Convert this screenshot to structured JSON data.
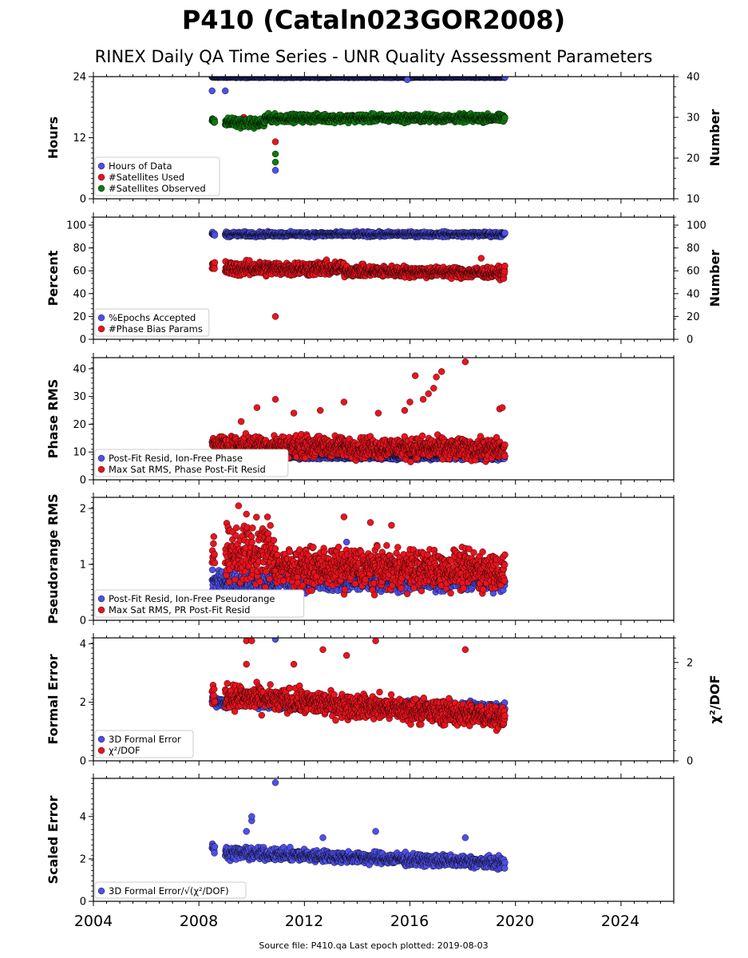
{
  "figure": {
    "title": "P410 (Cataln023GOR2008)",
    "subtitle": "RINEX Daily QA Time Series - UNR Quality Assessment Parameters",
    "footer": "Source file: P410.qa Last epoch plotted: 2019-08-03",
    "x_axis": {
      "range": [
        2004.0,
        2026.0
      ],
      "ticks": [
        "2004",
        "2008",
        "2012",
        "2016",
        "2020",
        "2024"
      ]
    }
  },
  "chart_data": [
    {
      "type": "scatter",
      "ylabel": "Hours",
      "ylabel_right": "Number",
      "ylim": [
        0,
        24
      ],
      "ylim_right": [
        10,
        40
      ],
      "yticks": [
        "0",
        "12",
        "24"
      ],
      "yticks_right": [
        "10",
        "20",
        "30",
        "40"
      ],
      "legend_position": "lower-left",
      "series": [
        {
          "name": "Hours of Data",
          "color": "#4f4fe8",
          "axis": "left",
          "segments": [
            {
              "x": [
                2008.5,
                2019.6
              ],
              "y": [
                23.9,
                23.9
              ],
              "spread": 0.15
            }
          ],
          "outliers": [
            [
              2008.5,
              21.2
            ],
            [
              2009.0,
              21.2
            ],
            [
              2010.9,
              5.6
            ],
            [
              2015.9,
              23.4
            ]
          ]
        },
        {
          "name": "#Satellites Used",
          "color": "#e8141e",
          "axis": "right",
          "segments": [],
          "outliers": [
            [
              2009.7,
              30.0
            ],
            [
              2010.9,
              24.0
            ]
          ]
        },
        {
          "name": "#Satellites Observed",
          "color": "#0f7a0f",
          "axis": "right",
          "segments": [
            {
              "x": [
                2008.5,
                2008.6
              ],
              "y": [
                29.5,
                29.5
              ],
              "spread": 1.5
            },
            {
              "x": [
                2009.0,
                2010.5
              ],
              "y": [
                28.8,
                28.5
              ],
              "spread": 1.6
            },
            {
              "x": [
                2010.5,
                2019.6
              ],
              "y": [
                29.8,
                29.8
              ],
              "spread": 1.4
            }
          ],
          "outliers": [
            [
              2010.9,
              19.0
            ],
            [
              2010.9,
              21.0
            ]
          ]
        }
      ]
    },
    {
      "type": "scatter",
      "ylabel": "Percent",
      "ylabel_right": "Number",
      "ylim": [
        0,
        107
      ],
      "ylim_right": [
        0,
        107
      ],
      "yticks": [
        "0",
        "20",
        "40",
        "60",
        "80",
        "100"
      ],
      "yticks_right": [
        "0",
        "20",
        "40",
        "60",
        "80",
        "100"
      ],
      "legend_position": "lower-left",
      "series": [
        {
          "name": "%Epochs Accepted",
          "color": "#4f4fe8",
          "axis": "left",
          "segments": [
            {
              "x": [
                2008.5,
                2008.6
              ],
              "y": [
                92,
                92
              ],
              "spread": 3
            },
            {
              "x": [
                2009.0,
                2019.6
              ],
              "y": [
                92,
                92
              ],
              "spread": 3
            }
          ],
          "outliers": []
        },
        {
          "name": "#Phase Bias Params",
          "color": "#e8141e",
          "axis": "right",
          "segments": [
            {
              "x": [
                2008.5,
                2008.6
              ],
              "y": [
                64,
                64
              ],
              "spread": 6
            },
            {
              "x": [
                2009.0,
                2013.5
              ],
              "y": [
                62,
                62
              ],
              "spread": 9
            },
            {
              "x": [
                2013.5,
                2019.6
              ],
              "y": [
                60,
                58
              ],
              "spread": 7
            }
          ],
          "outliers": [
            [
              2010.9,
              20
            ],
            [
              2018.7,
              71
            ]
          ]
        }
      ]
    },
    {
      "type": "scatter",
      "ylabel": "Phase RMS",
      "ylim": [
        0,
        44
      ],
      "yticks": [
        "0",
        "10",
        "20",
        "30",
        "40"
      ],
      "legend_position": "lower-left",
      "series": [
        {
          "name": "Post-Fit Resid, Ion-Free Phase",
          "color": "#4f4fe8",
          "axis": "left",
          "segments": [
            {
              "x": [
                2008.5,
                2019.6
              ],
              "y": [
                8.5,
                8.0
              ],
              "spread": 1.2
            }
          ],
          "outliers": []
        },
        {
          "name": "Max Sat RMS, Phase Post-Fit Resid",
          "color": "#e8141e",
          "axis": "left",
          "segments": [
            {
              "x": [
                2008.5,
                2019.6
              ],
              "y": [
                12.5,
                11.0
              ],
              "spread": 5.5
            }
          ],
          "outliers": [
            [
              2009.6,
              21
            ],
            [
              2010.2,
              26
            ],
            [
              2010.9,
              29
            ],
            [
              2011.6,
              24
            ],
            [
              2012.6,
              25
            ],
            [
              2013.5,
              28
            ],
            [
              2014.8,
              24
            ],
            [
              2015.8,
              25
            ],
            [
              2016.0,
              28
            ],
            [
              2016.2,
              37.5
            ],
            [
              2016.5,
              29
            ],
            [
              2016.7,
              31
            ],
            [
              2016.9,
              33
            ],
            [
              2017.0,
              37
            ],
            [
              2017.2,
              39
            ],
            [
              2018.1,
              42.5
            ],
            [
              2019.4,
              25.5
            ],
            [
              2019.5,
              26
            ]
          ]
        }
      ]
    },
    {
      "type": "scatter",
      "ylabel": "Pseudorange RMS",
      "ylim": [
        0,
        2.2
      ],
      "yticks": [
        "0",
        "1",
        "2"
      ],
      "legend_position": "lower-left",
      "series": [
        {
          "name": "Post-Fit Resid, Ion-Free Pseudorange",
          "color": "#4f4fe8",
          "axis": "left",
          "segments": [
            {
              "x": [
                2008.5,
                2019.6
              ],
              "y": [
                0.7,
                0.7
              ],
              "spread": 0.25
            }
          ],
          "outliers": [
            [
              2013.6,
              1.4
            ],
            [
              2016.6,
              1.0
            ]
          ]
        },
        {
          "name": "Max Sat RMS, PR Post-Fit Resid",
          "color": "#e8141e",
          "axis": "left",
          "segments": [
            {
              "x": [
                2008.5,
                2008.6
              ],
              "y": [
                1.2,
                1.3
              ],
              "spread": 0.5
            },
            {
              "x": [
                2009.0,
                2010.9
              ],
              "y": [
                1.2,
                1.2
              ],
              "spread": 0.75
            },
            {
              "x": [
                2010.9,
                2019.6
              ],
              "y": [
                0.95,
                0.9
              ],
              "spread": 0.5
            }
          ],
          "outliers": [
            [
              2009.5,
              2.05
            ],
            [
              2009.8,
              1.9
            ],
            [
              2010.6,
              1.85
            ],
            [
              2013.5,
              1.85
            ],
            [
              2014.5,
              1.75
            ],
            [
              2015.3,
              1.7
            ]
          ]
        }
      ]
    },
    {
      "type": "scatter",
      "ylabel": "Formal Error",
      "ylabel_right": "χ²/DOF",
      "ylim": [
        0,
        4.2
      ],
      "ylim_right": [
        0,
        2.5
      ],
      "yticks": [
        "0",
        "2",
        "4"
      ],
      "yticks_right": [
        "0",
        "2"
      ],
      "legend_position": "lower-left",
      "series": [
        {
          "name": "3D Formal Error",
          "color": "#4f4fe8",
          "axis": "left",
          "segments": [
            {
              "x": [
                2008.5,
                2019.6
              ],
              "y": [
                2.0,
                1.8
              ],
              "spread": 0.25
            }
          ],
          "outliers": [
            [
              2010.9,
              4.15
            ]
          ]
        },
        {
          "name": "χ²/DOF",
          "color": "#e8141e",
          "axis": "left",
          "segments": [
            {
              "x": [
                2008.5,
                2008.6
              ],
              "y": [
                2.2,
                2.2
              ],
              "spread": 0.5
            },
            {
              "x": [
                2009.0,
                2019.6
              ],
              "y": [
                2.2,
                1.5
              ],
              "spread": 0.6
            }
          ],
          "outliers": [
            [
              2009.8,
              4.1
            ],
            [
              2010.0,
              4.1
            ],
            [
              2012.7,
              3.8
            ],
            [
              2013.6,
              3.6
            ],
            [
              2014.7,
              4.1
            ],
            [
              2018.1,
              3.8
            ],
            [
              2009.8,
              3.3
            ],
            [
              2011.6,
              3.3
            ]
          ]
        }
      ]
    },
    {
      "type": "scatter",
      "ylabel": "Scaled Error",
      "ylim": [
        0,
        5.8
      ],
      "yticks": [
        "0",
        "2",
        "4"
      ],
      "legend_position": "lower-left",
      "series": [
        {
          "name": "3D Formal Error/√(χ²/DOF)",
          "color": "#4f4fe8",
          "axis": "left",
          "segments": [
            {
              "x": [
                2008.5,
                2008.6
              ],
              "y": [
                2.5,
                2.5
              ],
              "spread": 0.3
            },
            {
              "x": [
                2009.0,
                2019.6
              ],
              "y": [
                2.3,
                1.8
              ],
              "spread": 0.4
            }
          ],
          "outliers": [
            [
              2009.8,
              3.3
            ],
            [
              2010.0,
              3.8
            ],
            [
              2010.0,
              4.0
            ],
            [
              2010.9,
              5.6
            ],
            [
              2012.7,
              3.0
            ],
            [
              2014.7,
              3.3
            ],
            [
              2018.1,
              3.0
            ]
          ]
        }
      ]
    }
  ]
}
